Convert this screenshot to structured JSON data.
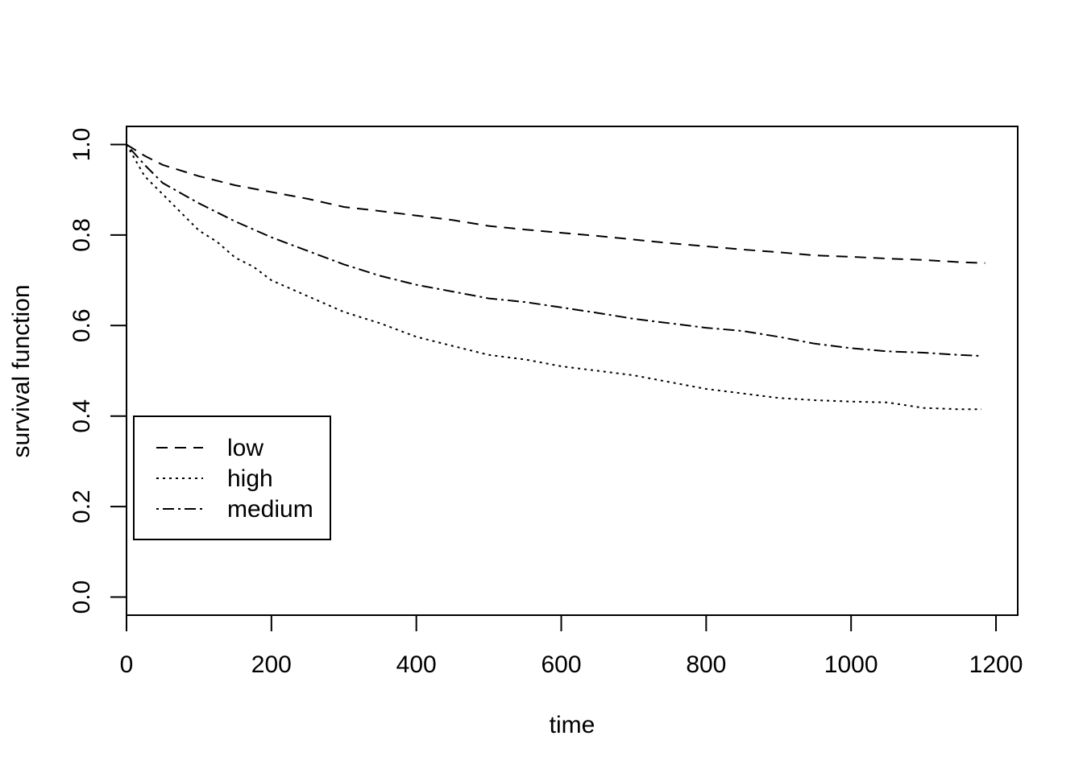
{
  "chart_data": {
    "type": "line",
    "title": "",
    "xlabel": "time",
    "ylabel": "survival function",
    "xlim": [
      0,
      1230
    ],
    "ylim": [
      -0.04,
      1.04
    ],
    "x_ticks": [
      "0",
      "200",
      "400",
      "600",
      "800",
      "1000",
      "1200"
    ],
    "y_ticks": [
      "0.0",
      "0.2",
      "0.4",
      "0.6",
      "0.8",
      "1.0"
    ],
    "grid": false,
    "legend_position": "bottom-left",
    "series": [
      {
        "name": "low",
        "line_style": "dashed",
        "color": "#000000",
        "x": [
          0,
          25,
          50,
          100,
          150,
          200,
          250,
          300,
          350,
          400,
          450,
          500,
          550,
          600,
          650,
          700,
          750,
          800,
          850,
          900,
          950,
          1000,
          1050,
          1100,
          1150,
          1185
        ],
        "y": [
          1.0,
          0.975,
          0.955,
          0.93,
          0.91,
          0.895,
          0.88,
          0.862,
          0.853,
          0.843,
          0.833,
          0.82,
          0.812,
          0.805,
          0.798,
          0.79,
          0.782,
          0.775,
          0.768,
          0.762,
          0.755,
          0.752,
          0.748,
          0.745,
          0.74,
          0.738
        ]
      },
      {
        "name": "high",
        "line_style": "dotted",
        "color": "#000000",
        "x": [
          0,
          25,
          50,
          75,
          100,
          125,
          150,
          175,
          200,
          250,
          300,
          350,
          400,
          450,
          500,
          550,
          600,
          650,
          700,
          750,
          800,
          850,
          900,
          950,
          1000,
          1050,
          1100,
          1150,
          1180
        ],
        "y": [
          1.0,
          0.93,
          0.89,
          0.85,
          0.81,
          0.785,
          0.75,
          0.73,
          0.7,
          0.665,
          0.63,
          0.605,
          0.575,
          0.555,
          0.535,
          0.525,
          0.51,
          0.5,
          0.49,
          0.475,
          0.46,
          0.45,
          0.44,
          0.435,
          0.432,
          0.43,
          0.418,
          0.415,
          0.415
        ]
      },
      {
        "name": "medium",
        "line_style": "dotdash",
        "color": "#000000",
        "x": [
          0,
          25,
          50,
          100,
          150,
          200,
          250,
          300,
          350,
          400,
          450,
          500,
          550,
          600,
          650,
          700,
          750,
          800,
          850,
          900,
          950,
          1000,
          1050,
          1100,
          1150,
          1180
        ],
        "y": [
          1.0,
          0.955,
          0.915,
          0.87,
          0.83,
          0.795,
          0.765,
          0.735,
          0.71,
          0.69,
          0.675,
          0.66,
          0.652,
          0.64,
          0.628,
          0.615,
          0.605,
          0.595,
          0.588,
          0.575,
          0.56,
          0.55,
          0.543,
          0.54,
          0.535,
          0.533
        ]
      }
    ]
  }
}
